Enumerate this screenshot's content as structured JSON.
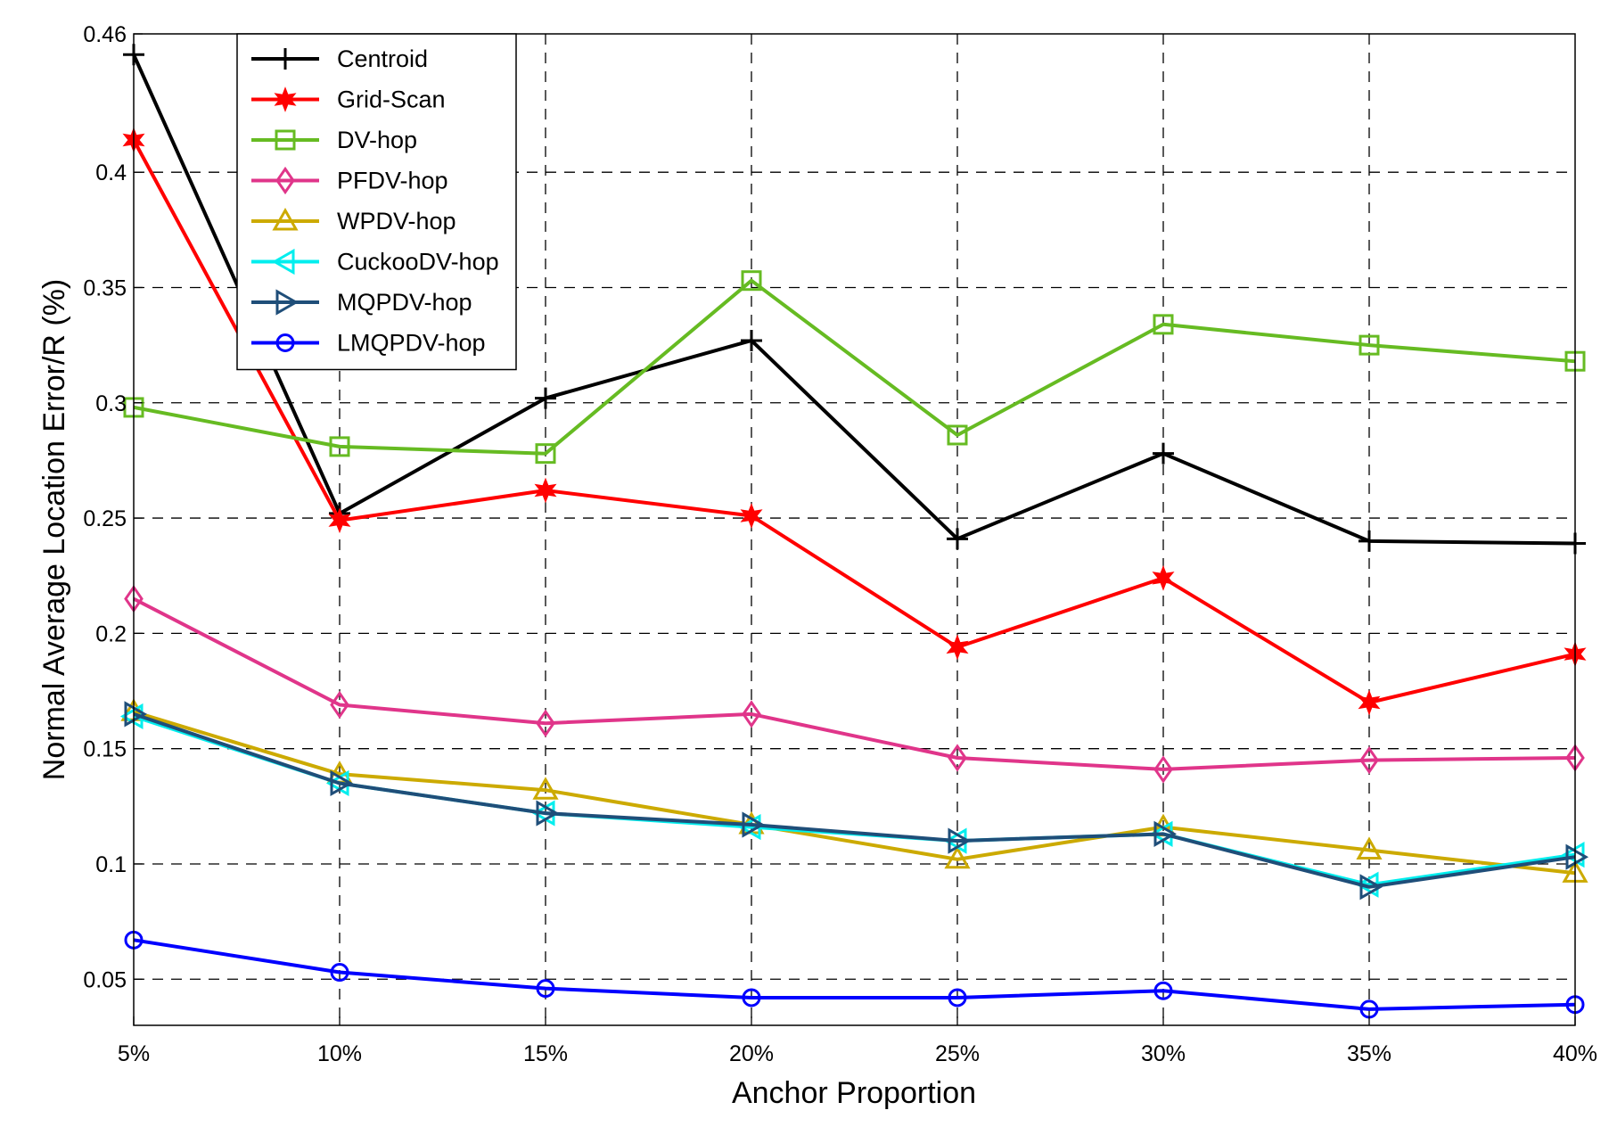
{
  "chart_data": {
    "type": "line",
    "title": "",
    "xlabel": "Anchor Proportion",
    "ylabel": "Normal Average Location Error/R (%)",
    "categories": [
      "5%",
      "10%",
      "15%",
      "20%",
      "25%",
      "30%",
      "35%",
      "40%"
    ],
    "ylim": [
      0.03,
      0.46
    ],
    "yticks": [
      0.05,
      0.1,
      0.15,
      0.2,
      0.25,
      0.3,
      0.35,
      0.4,
      0.46
    ],
    "ytick_labels": [
      "0.05",
      "0.1",
      "0.15",
      "0.2",
      "0.25",
      "0.3",
      "0.35",
      "0.4",
      "0.46"
    ],
    "grid": true,
    "legend_position": "top-left",
    "series": [
      {
        "name": "Centroid",
        "color": "#000000",
        "marker": "plus",
        "values": [
          0.451,
          0.252,
          0.302,
          0.327,
          0.241,
          0.278,
          0.24,
          0.239
        ]
      },
      {
        "name": "Grid-Scan",
        "color": "#ff0000",
        "marker": "star",
        "values": [
          0.414,
          0.249,
          0.262,
          0.251,
          0.194,
          0.224,
          0.17,
          0.191
        ]
      },
      {
        "name": "DV-hop",
        "color": "#66bb22",
        "marker": "square",
        "values": [
          0.298,
          0.281,
          0.278,
          0.353,
          0.286,
          0.334,
          0.325,
          0.318
        ]
      },
      {
        "name": "PFDV-hop",
        "color": "#e0358a",
        "marker": "diamond",
        "values": [
          0.215,
          0.169,
          0.161,
          0.165,
          0.146,
          0.141,
          0.145,
          0.146
        ]
      },
      {
        "name": "WPDV-hop",
        "color": "#ccaa00",
        "marker": "triangle-up",
        "values": [
          0.166,
          0.139,
          0.132,
          0.117,
          0.102,
          0.116,
          0.106,
          0.096
        ]
      },
      {
        "name": "CuckooDV-hop",
        "color": "#00eeee",
        "marker": "triangle-left",
        "values": [
          0.164,
          0.135,
          0.122,
          0.116,
          0.11,
          0.113,
          0.091,
          0.104
        ]
      },
      {
        "name": "MQPDV-hop",
        "color": "#1f4e79",
        "marker": "triangle-right",
        "values": [
          0.165,
          0.135,
          0.122,
          0.117,
          0.11,
          0.113,
          0.09,
          0.103
        ]
      },
      {
        "name": "LMQPDV-hop",
        "color": "#0000ff",
        "marker": "circle",
        "values": [
          0.067,
          0.053,
          0.046,
          0.042,
          0.042,
          0.045,
          0.037,
          0.039
        ]
      }
    ]
  }
}
